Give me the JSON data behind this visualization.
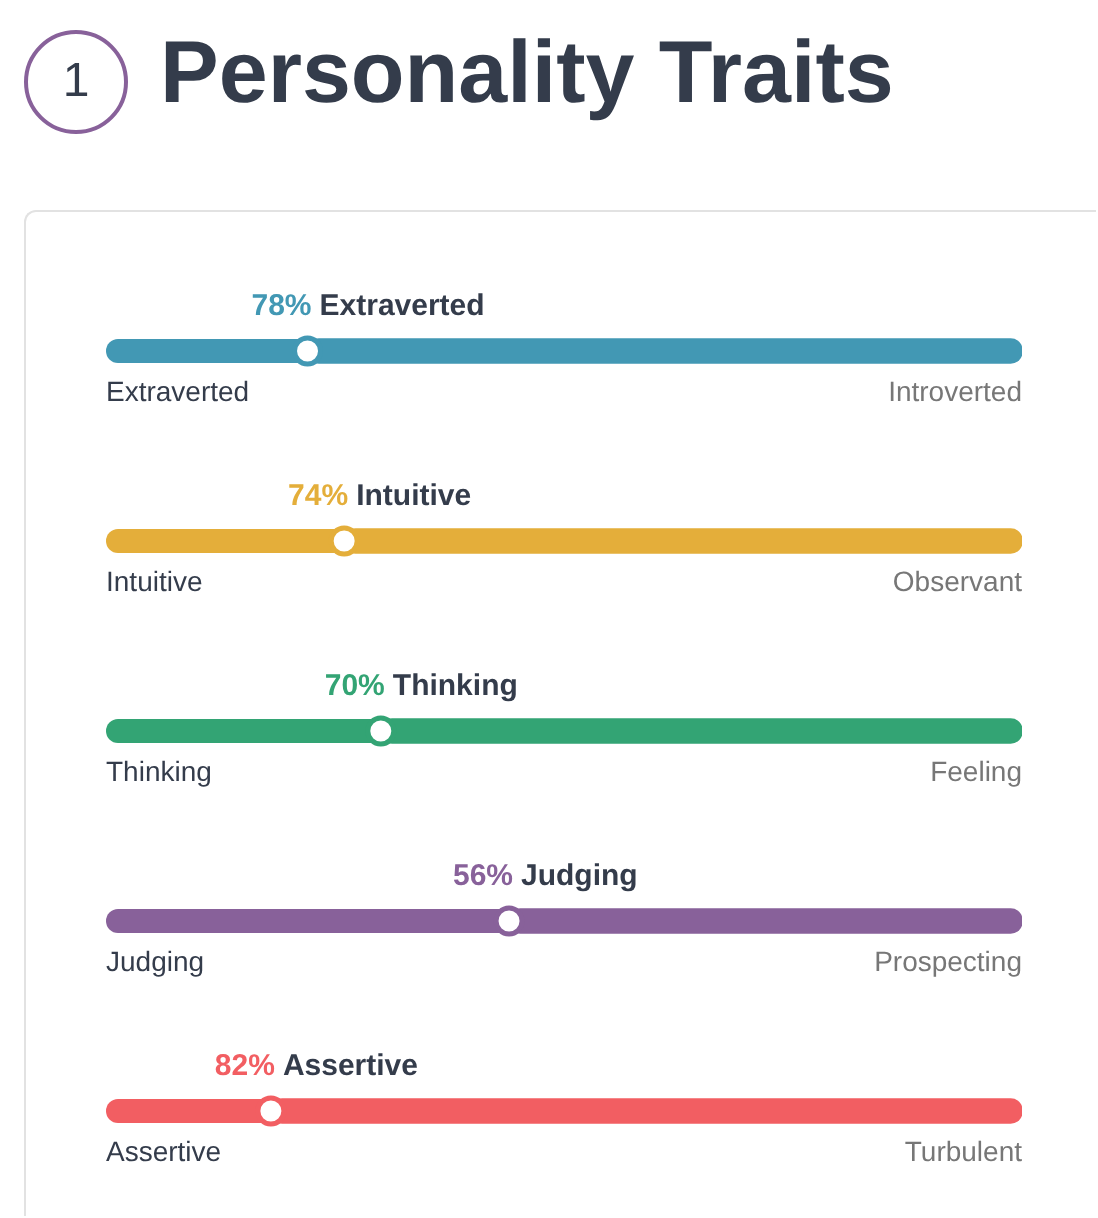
{
  "chart_data": {
    "type": "other",
    "title": "Personality Traits",
    "annotations": [
      "1"
    ],
    "categories": [
      "Extraverted",
      "Intuitive",
      "Thinking",
      "Judging",
      "Assertive"
    ],
    "y2_categories": [
      "Introverted",
      "Observant",
      "Feeling",
      "Prospecting",
      "Turbulent"
    ],
    "values": [
      78,
      74,
      70,
      56,
      82
    ],
    "value_labels": [
      "78%",
      "74%",
      "70%",
      "56%",
      "82%"
    ],
    "colors": [
      "#4298b4",
      "#e4ae3a",
      "#33a474",
      "#88619a",
      "#f25e62"
    ]
  }
}
